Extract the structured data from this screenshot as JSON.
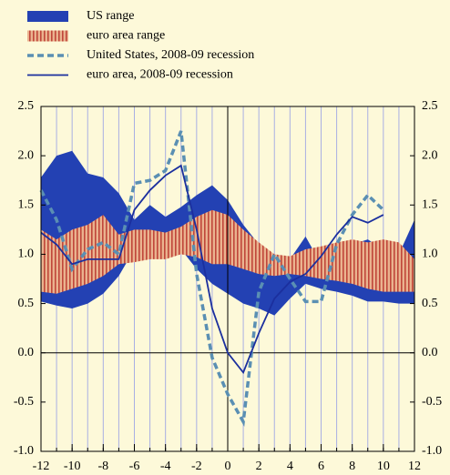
{
  "chart_data": {
    "type": "range-line",
    "x": [
      -12,
      -11,
      -10,
      -9,
      -8,
      -7,
      -6,
      -5,
      -4,
      -3,
      -2,
      -1,
      0,
      1,
      2,
      3,
      4,
      5,
      6,
      7,
      8,
      9,
      10,
      11,
      12
    ],
    "xlim": [
      -12,
      12
    ],
    "xticks": [
      -12,
      -10,
      -8,
      -6,
      -4,
      -2,
      0,
      2,
      4,
      6,
      8,
      10,
      12
    ],
    "ylim": [
      -1,
      2.5
    ],
    "yticks": [
      {
        "value": 2.5,
        "label": "2.5"
      },
      {
        "value": 2,
        "label": "2.0"
      },
      {
        "value": 1.5,
        "label": "1.5"
      },
      {
        "value": 1,
        "label": "1.0"
      },
      {
        "value": 0.5,
        "label": "0.5"
      },
      {
        "value": 0,
        "label": "0.0"
      },
      {
        "value": -0.5,
        "label": "-0.5"
      },
      {
        "value": -1,
        "label": "-1.0"
      }
    ],
    "grid": true,
    "series": [
      {
        "name": "US range",
        "kind": "range",
        "color": "#2341b3",
        "high": [
          1.78,
          2.0,
          2.05,
          1.82,
          1.78,
          1.62,
          1.35,
          1.5,
          1.38,
          1.48,
          1.6,
          1.7,
          1.55,
          1.3,
          1.1,
          0.9,
          0.95,
          1.18,
          0.9,
          1.0,
          1.1,
          1.15,
          1.05,
          1.0,
          1.35
        ],
        "low": [
          0.52,
          0.48,
          0.45,
          0.5,
          0.6,
          0.78,
          1.05,
          1.15,
          1.15,
          1.05,
          0.85,
          0.7,
          0.6,
          0.5,
          0.45,
          0.38,
          0.55,
          0.7,
          0.65,
          0.62,
          0.58,
          0.52,
          0.52,
          0.5,
          0.5
        ]
      },
      {
        "name": "euro area range",
        "kind": "range",
        "color": "#c0463a",
        "hatch": true,
        "high": [
          1.25,
          1.15,
          1.25,
          1.3,
          1.4,
          1.2,
          1.25,
          1.25,
          1.22,
          1.28,
          1.38,
          1.45,
          1.4,
          1.25,
          1.12,
          1.0,
          0.98,
          1.05,
          1.08,
          1.12,
          1.15,
          1.12,
          1.15,
          1.12,
          0.95
        ],
        "low": [
          0.62,
          0.6,
          0.65,
          0.7,
          0.78,
          0.9,
          0.92,
          0.95,
          0.95,
          1.0,
          0.97,
          0.9,
          0.9,
          0.85,
          0.8,
          0.78,
          0.8,
          0.78,
          0.75,
          0.73,
          0.7,
          0.65,
          0.62,
          0.62,
          0.62
        ]
      },
      {
        "name": "United States, 2008-09 recession",
        "kind": "line",
        "dashed": true,
        "color": "#5a8fb3",
        "values": [
          1.65,
          1.35,
          0.85,
          1.05,
          1.12,
          1.0,
          1.72,
          1.75,
          1.85,
          2.25,
          0.8,
          -0.05,
          -0.42,
          -0.7,
          0.62,
          1.0,
          0.75,
          0.52,
          0.52,
          1.1,
          1.4,
          1.6,
          1.45,
          null,
          null
        ]
      },
      {
        "name": "euro area, 2008-09 recession",
        "kind": "line",
        "color": "#1b2f9e",
        "values": [
          1.22,
          1.1,
          0.9,
          0.95,
          0.95,
          0.95,
          1.45,
          1.65,
          1.8,
          1.9,
          1.25,
          0.45,
          0.0,
          -0.2,
          0.2,
          0.55,
          0.72,
          0.8,
          0.98,
          1.2,
          1.38,
          1.32,
          1.4,
          null,
          null
        ]
      }
    ]
  }
}
